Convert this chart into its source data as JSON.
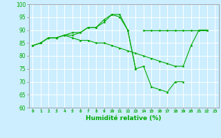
{
  "x": [
    0,
    1,
    2,
    3,
    4,
    5,
    6,
    7,
    8,
    9,
    10,
    11,
    12,
    13,
    14,
    15,
    16,
    17,
    18,
    19,
    20,
    21,
    22,
    23
  ],
  "line1": [
    84,
    85,
    87,
    87,
    88,
    88,
    89,
    91,
    91,
    94,
    96,
    96,
    90,
    75,
    null,
    null,
    null,
    null,
    null,
    null,
    null,
    null,
    null,
    null
  ],
  "line2": [
    84,
    85,
    87,
    87,
    88,
    89,
    89,
    91,
    91,
    93,
    96,
    95,
    90,
    75,
    76,
    68,
    67,
    66,
    70,
    70,
    null,
    null,
    null,
    null
  ],
  "line3": [
    84,
    85,
    87,
    87,
    88,
    87,
    86,
    86,
    85,
    85,
    84,
    83,
    82,
    81,
    80,
    79,
    78,
    77,
    76,
    76,
    84,
    90,
    90,
    null
  ],
  "line4": [
    null,
    null,
    null,
    null,
    null,
    null,
    null,
    null,
    null,
    null,
    null,
    null,
    null,
    null,
    90,
    90,
    90,
    90,
    90,
    90,
    90,
    90,
    90,
    null
  ],
  "xlabel": "Humidité relative (%)",
  "bg_color": "#cceeff",
  "grid_color": "#ffffff",
  "line_color": "#00aa00",
  "ylim": [
    60,
    100
  ],
  "xlim": [
    -0.5,
    23.5
  ],
  "yticks": [
    60,
    65,
    70,
    75,
    80,
    85,
    90,
    95,
    100
  ],
  "xticks": [
    0,
    1,
    2,
    3,
    4,
    5,
    6,
    7,
    8,
    9,
    10,
    11,
    12,
    13,
    14,
    15,
    16,
    17,
    18,
    19,
    20,
    21,
    22,
    23
  ]
}
